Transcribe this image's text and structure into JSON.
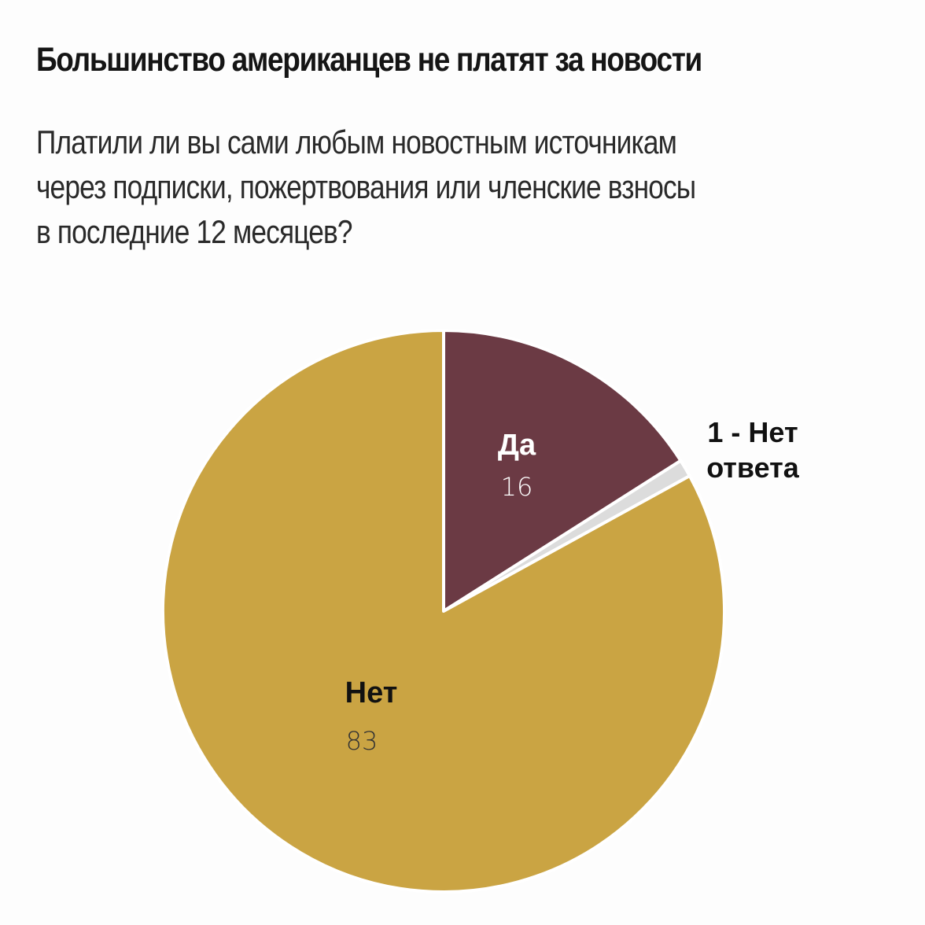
{
  "title": "Большинство американцев не платят за новости",
  "subtitle_lines": [
    "Платили ли вы сами любым новостным источникам",
    "через подписки, пожертвования или членские взносы",
    "в последние 12 месяцев?"
  ],
  "chart_data": {
    "type": "pie",
    "start": "12 o'clock",
    "direction": "clockwise",
    "slices": [
      {
        "label": "Да",
        "value": 16,
        "value_label": "16",
        "color": "#6b3a44",
        "label_color": "#ffffff"
      },
      {
        "label": "Нет ответа",
        "value": 1,
        "value_label": "1",
        "color": "#dcdcdc"
      },
      {
        "label": "Нет",
        "value": 83,
        "value_label": "83",
        "color": "#caa443",
        "label_color": "#111111"
      }
    ],
    "callout_lines": [
      "1 - Нет",
      "ответа"
    ]
  }
}
